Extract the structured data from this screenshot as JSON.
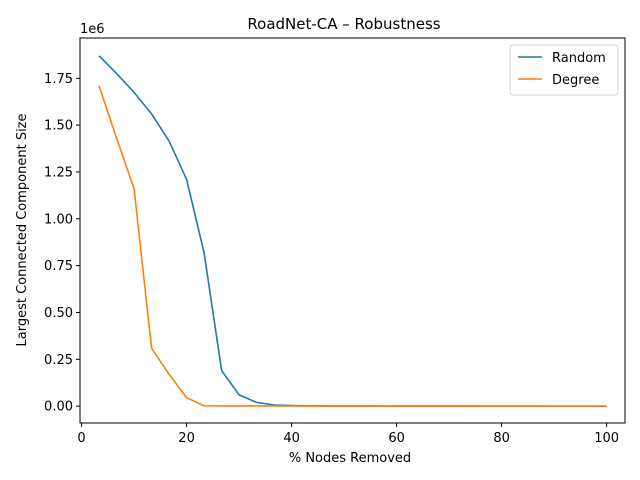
{
  "chart_data": {
    "type": "line",
    "title": "RoadNet-CA – Robustness",
    "xlabel": "% Nodes Removed",
    "ylabel": "Largest Connected Component Size",
    "y_scale_label": "1e6",
    "xlim": [
      -0.3,
      103.5
    ],
    "ylim": [
      -0.09,
      1.965
    ],
    "x_ticks": [
      0,
      20,
      40,
      60,
      80,
      100
    ],
    "x_tick_labels": [
      "0",
      "20",
      "40",
      "60",
      "80",
      "100"
    ],
    "y_ticks": [
      0,
      0.25,
      0.5,
      0.75,
      1.0,
      1.25,
      1.5,
      1.75
    ],
    "y_tick_labels": [
      "0.00",
      "0.25",
      "0.50",
      "0.75",
      "1.00",
      "1.25",
      "1.50",
      "1.75"
    ],
    "grid": false,
    "legend_position": "top-right",
    "x": [
      3.33,
      6.67,
      10,
      13.33,
      16.67,
      20,
      23.33,
      26.67,
      30,
      33.33,
      36.67,
      40,
      43.33,
      46.67,
      50,
      53.33,
      56.67,
      60,
      63.33,
      66.67,
      70,
      73.33,
      76.67,
      80,
      83.33,
      86.67,
      90,
      93.33,
      96.67,
      100
    ],
    "series": [
      {
        "name": "Random",
        "color": "#1f77b4",
        "values": [
          1.87,
          1.775,
          1.675,
          1.56,
          1.415,
          1.21,
          0.82,
          0.19,
          0.06,
          0.02,
          0.006,
          0.003,
          0.002,
          0.001,
          0.001,
          0.001,
          0.0008,
          0.0006,
          0.0005,
          0.0004,
          0.0004,
          0.0003,
          0.0003,
          0.0002,
          0.0002,
          0.0002,
          0.0001,
          0.0001,
          0.0001,
          0.0001
        ]
      },
      {
        "name": "Degree",
        "color": "#ff7f0e",
        "values": [
          1.71,
          1.43,
          1.16,
          0.31,
          0.17,
          0.045,
          0.002,
          0.001,
          0.001,
          0.001,
          0.001,
          0.0008,
          0.0006,
          0.0005,
          0.0004,
          0.0004,
          0.0003,
          0.0003,
          0.0002,
          0.0002,
          0.0002,
          0.0002,
          0.0001,
          0.0001,
          0.0001,
          0.0001,
          0.0001,
          0.0001,
          0.0001,
          0.0001
        ]
      }
    ]
  }
}
